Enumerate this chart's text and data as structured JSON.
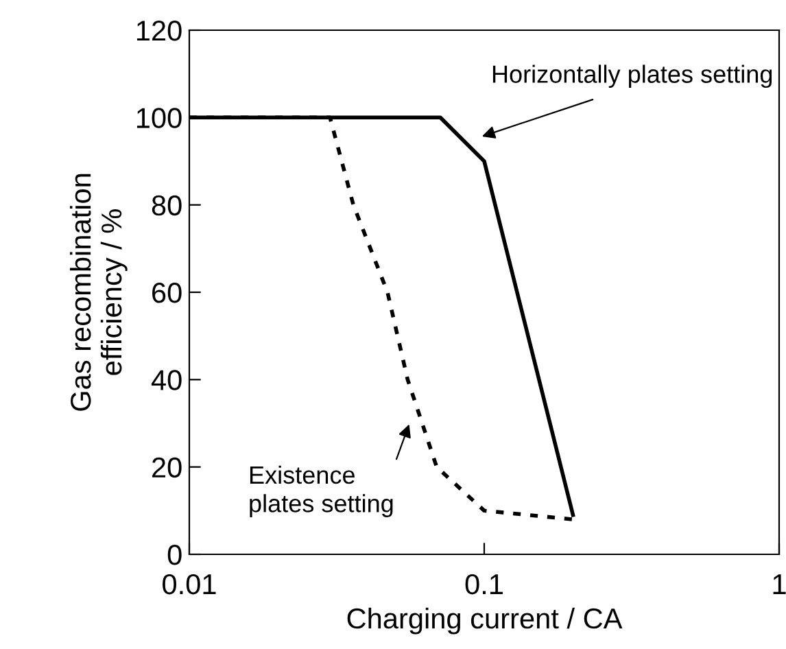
{
  "chart_data": {
    "type": "line",
    "xlabel": "Charging current / CA",
    "ylabel": "Gas recombination\nefficiency / %",
    "log": "x",
    "xlim": [
      0.01,
      1
    ],
    "xticks": [
      0.01,
      0.1,
      1
    ],
    "ylim": [
      0,
      120
    ],
    "yticks": [
      0,
      20,
      40,
      60,
      80,
      100,
      120
    ],
    "grid": false,
    "legend": false,
    "series": [
      {
        "color": "#000000",
        "line_style": "solid",
        "x": [
          0.01,
          0.071,
          0.1,
          0.2
        ],
        "values": [
          100,
          100,
          90,
          9
        ]
      },
      {
        "color": "#000000",
        "line_style": "dotted",
        "x": [
          0.01,
          0.03,
          0.036,
          0.047,
          0.055,
          0.069,
          0.1,
          0.2
        ],
        "values": [
          100,
          100,
          80,
          60,
          40,
          20,
          10,
          8
        ]
      }
    ],
    "annotations": [
      "Horizontally plates setting",
      "Existence\nplates setting"
    ]
  }
}
